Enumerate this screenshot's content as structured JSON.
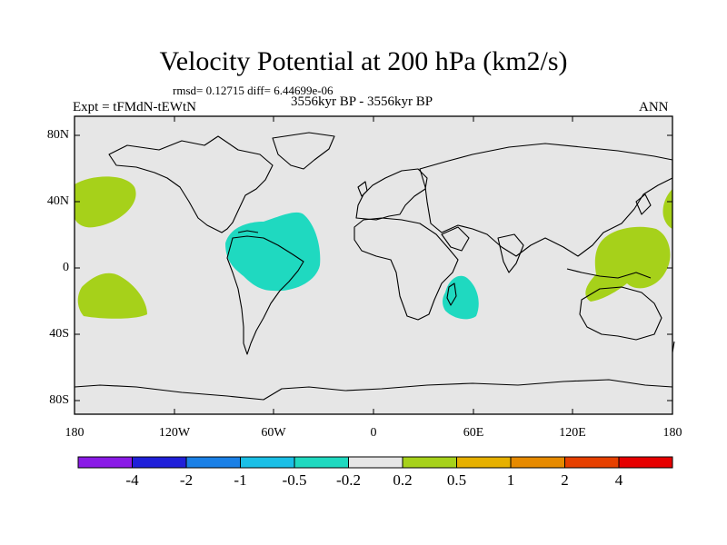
{
  "title": "Velocity Potential at 200 hPa (km2/s)",
  "stats": "rmsd= 0.12715 diff= 6.44699e-06",
  "expt": "Expt = tFMdN-tEWtN",
  "period": "3556kyr BP - 3556kyr BP",
  "season": "ANN",
  "map": {
    "lon_range": [
      -180,
      180
    ],
    "lat_range": [
      -90,
      90
    ],
    "x_ticks": [
      "180",
      "120W",
      "60W",
      "0",
      "60E",
      "120E",
      "180"
    ],
    "y_ticks": [
      "80N",
      "40N",
      "0",
      "40S",
      "80S"
    ],
    "background_color": "#e6e6e6",
    "anomalies": [
      {
        "region": "North Pacific",
        "sign": "positive",
        "color": "#a6d11a"
      },
      {
        "region": "South Pacific",
        "sign": "positive",
        "color": "#a6d11a"
      },
      {
        "region": "Tropical Atlantic / South America",
        "sign": "negative",
        "color": "#1fd9c0"
      },
      {
        "region": "Madagascar",
        "sign": "negative",
        "color": "#1fd9c0"
      },
      {
        "region": "Western Pacific / Indonesia",
        "sign": "positive",
        "color": "#a6d11a"
      },
      {
        "region": "Date line North Pacific",
        "sign": "positive",
        "color": "#a6d11a"
      }
    ]
  },
  "colorbar": {
    "labels": [
      "-4",
      "-2",
      "-1",
      "-0.5",
      "-0.2",
      "0.2",
      "0.5",
      "1",
      "2",
      "4"
    ],
    "colors": [
      "#8a1ae6",
      "#2020d9",
      "#1a80e6",
      "#1abfe6",
      "#1fd9c0",
      "#e6e6e6",
      "#a6d11a",
      "#e6b000",
      "#e68a00",
      "#e64000",
      "#e60000"
    ]
  }
}
